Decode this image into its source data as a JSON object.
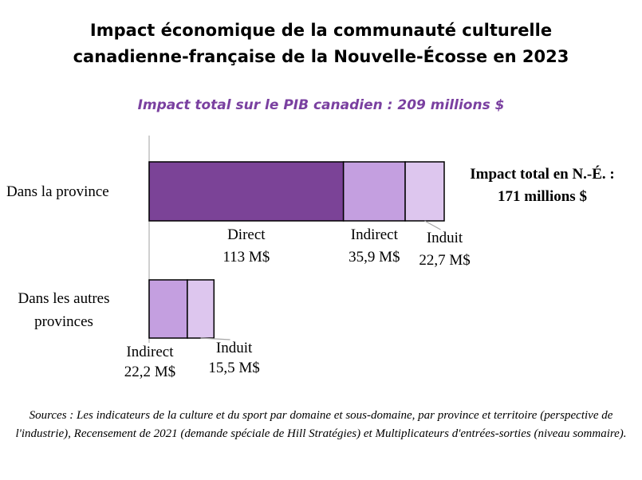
{
  "title_line1": "Impact économique de la communauté culturelle",
  "title_line2": "canadienne-française de la Nouvelle-Écosse en 2023",
  "subtitle": "Impact total sur le PIB canadien : 209 millions $",
  "annotation_line1": "Impact total en N.-É. :",
  "annotation_line2": "171 millions $",
  "sources": "Sources : Les indicateurs de la culture et du sport par domaine et sous-domaine, par province et territoire (perspective de l'industrie), Recensement de 2021 (demande spéciale de Hill Stratégies) et Multiplicateurs d'entrées-sorties (niveau sommaire).",
  "chart_data": {
    "type": "bar",
    "orientation": "horizontal",
    "stacked": true,
    "categories": [
      "Dans la province",
      "Dans les autres provinces"
    ],
    "category_label_lines": [
      [
        "Dans la province"
      ],
      [
        "Dans les autres",
        "provinces"
      ]
    ],
    "unit": "M$",
    "colors": {
      "Direct": "#7b4397",
      "Indirect": "#c49fe0",
      "Induit": "#ddc6ee"
    },
    "rows": [
      {
        "category": "Dans la province",
        "segments": [
          {
            "name": "Direct",
            "value": 113,
            "label_value": "113 M$"
          },
          {
            "name": "Indirect",
            "value": 35.9,
            "label_value": "35,9 M$"
          },
          {
            "name": "Induit",
            "value": 22.7,
            "label_value": "22,7 M$"
          }
        ]
      },
      {
        "category": "Dans les autres provinces",
        "segments": [
          {
            "name": "Indirect",
            "value": 22.2,
            "label_value": "22,2 M$"
          },
          {
            "name": "Induit",
            "value": 15.5,
            "label_value": "15,5 M$"
          }
        ]
      }
    ],
    "grid": false,
    "legend": "none"
  }
}
